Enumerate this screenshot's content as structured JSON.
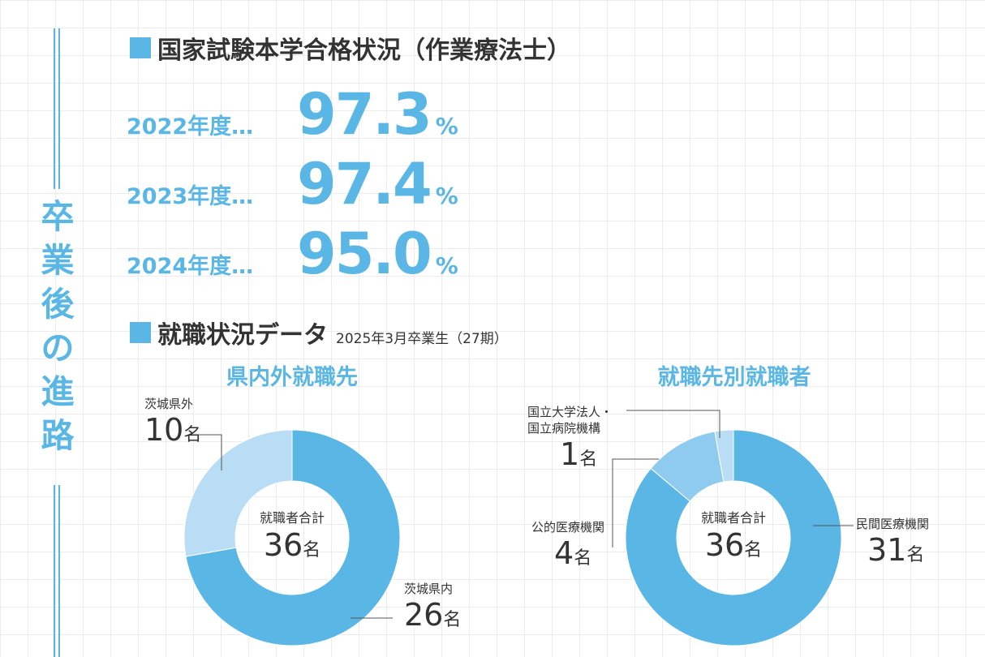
{
  "side_title": [
    "卒",
    "業",
    "後",
    "の",
    "進",
    "路"
  ],
  "heading_exam": "国家試験本学合格状況（作業療法士）",
  "pass_rates": [
    {
      "year": "2022年度…",
      "value": "97.3",
      "unit": "%"
    },
    {
      "year": "2023年度…",
      "value": "97.4",
      "unit": "%"
    },
    {
      "year": "2024年度…",
      "value": "95.0",
      "unit": "%"
    }
  ],
  "heading_jobs": "就職状況データ",
  "heading_jobs_sub": "2025年3月卒業生（27期）",
  "charts": [
    {
      "title": "県内外就職先",
      "center_label": "就職者合計",
      "center_value": "36",
      "center_unit": "名"
    },
    {
      "title": "就職先別就職者",
      "center_label": "就職者合計",
      "center_value": "36",
      "center_unit": "名"
    }
  ],
  "chart_data": [
    {
      "type": "pie",
      "title": "県内外就職先",
      "unit": "名",
      "categories": [
        "茨城県内",
        "茨城県外"
      ],
      "values": [
        26,
        10
      ],
      "colors": [
        "#5ab7e5",
        "#b9ddf5"
      ]
    },
    {
      "type": "pie",
      "title": "就職先別就職者",
      "unit": "名",
      "categories": [
        "民間医療機関",
        "公的医療機関",
        "国立大学法人・国立病院機構"
      ],
      "values": [
        31,
        4,
        1
      ],
      "colors": [
        "#5ab7e5",
        "#8fcbef",
        "#b9ddf5"
      ]
    }
  ],
  "labels": {
    "c1_in_name": "茨城県内",
    "c1_in_value": "26",
    "c1_out_name": "茨城県外",
    "c1_out_value": "10",
    "c2_private_name": "民間医療機関",
    "c2_private_value": "31",
    "c2_public_name": "公的医療機関",
    "c2_public_value": "4",
    "c2_national_name_1": "国立大学法人・",
    "c2_national_name_2": "国立病院機構",
    "c2_national_value": "1",
    "unit": "名"
  }
}
